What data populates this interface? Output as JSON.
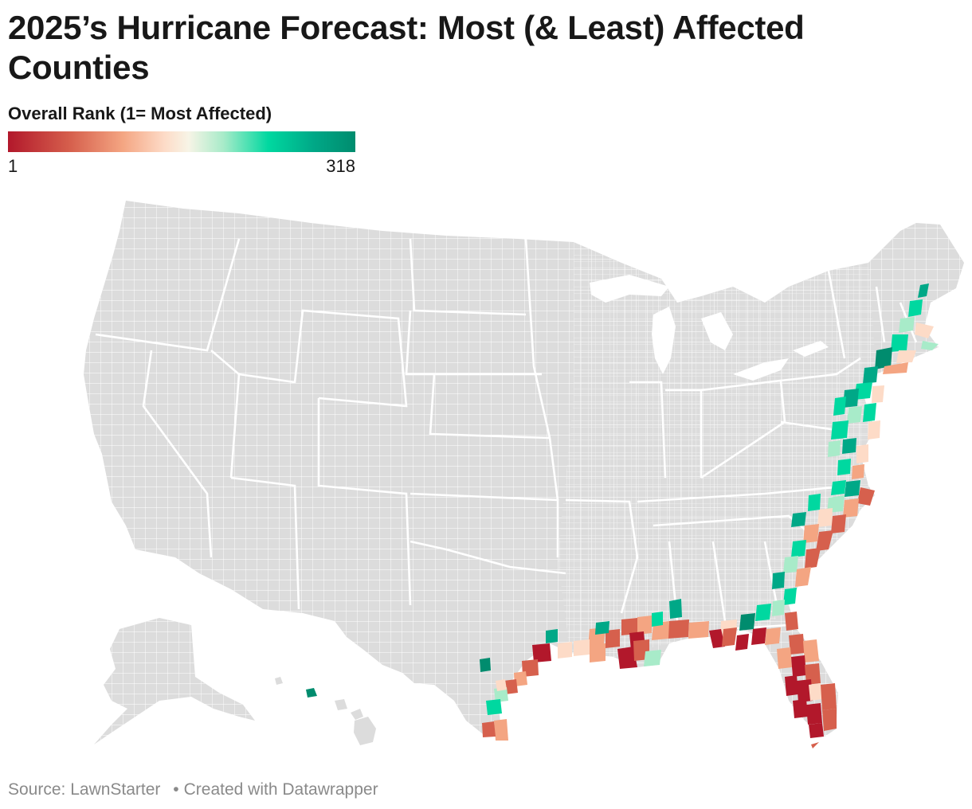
{
  "header": {
    "title": "2025’s Hurricane Forecast: Most (& Least) Affected Counties"
  },
  "legend": {
    "title": "Overall Rank (1= Most Affected)",
    "min_label": "1",
    "max_label": "318",
    "min_value": 1,
    "max_value": 318,
    "colors": [
      "#b2182b",
      "#d6604d",
      "#f4a582",
      "#fddbc7",
      "#f7f4e6",
      "#a8ebc9",
      "#00d8a0",
      "#00a887",
      "#008c6e"
    ]
  },
  "map": {
    "land_color": "#dcdcdc",
    "border_color": "#ffffff",
    "highlight_colors": {
      "most_affected": "#b2182b",
      "high": "#d6604d",
      "medium_high": "#f4a582",
      "medium": "#fddbc7",
      "low": "#a8ebc9",
      "lower": "#00d8a0",
      "least_affected": "#008c6e"
    }
  },
  "footer": {
    "source": "Source: LawnStarter",
    "created_with": "Created with Datawrapper"
  }
}
